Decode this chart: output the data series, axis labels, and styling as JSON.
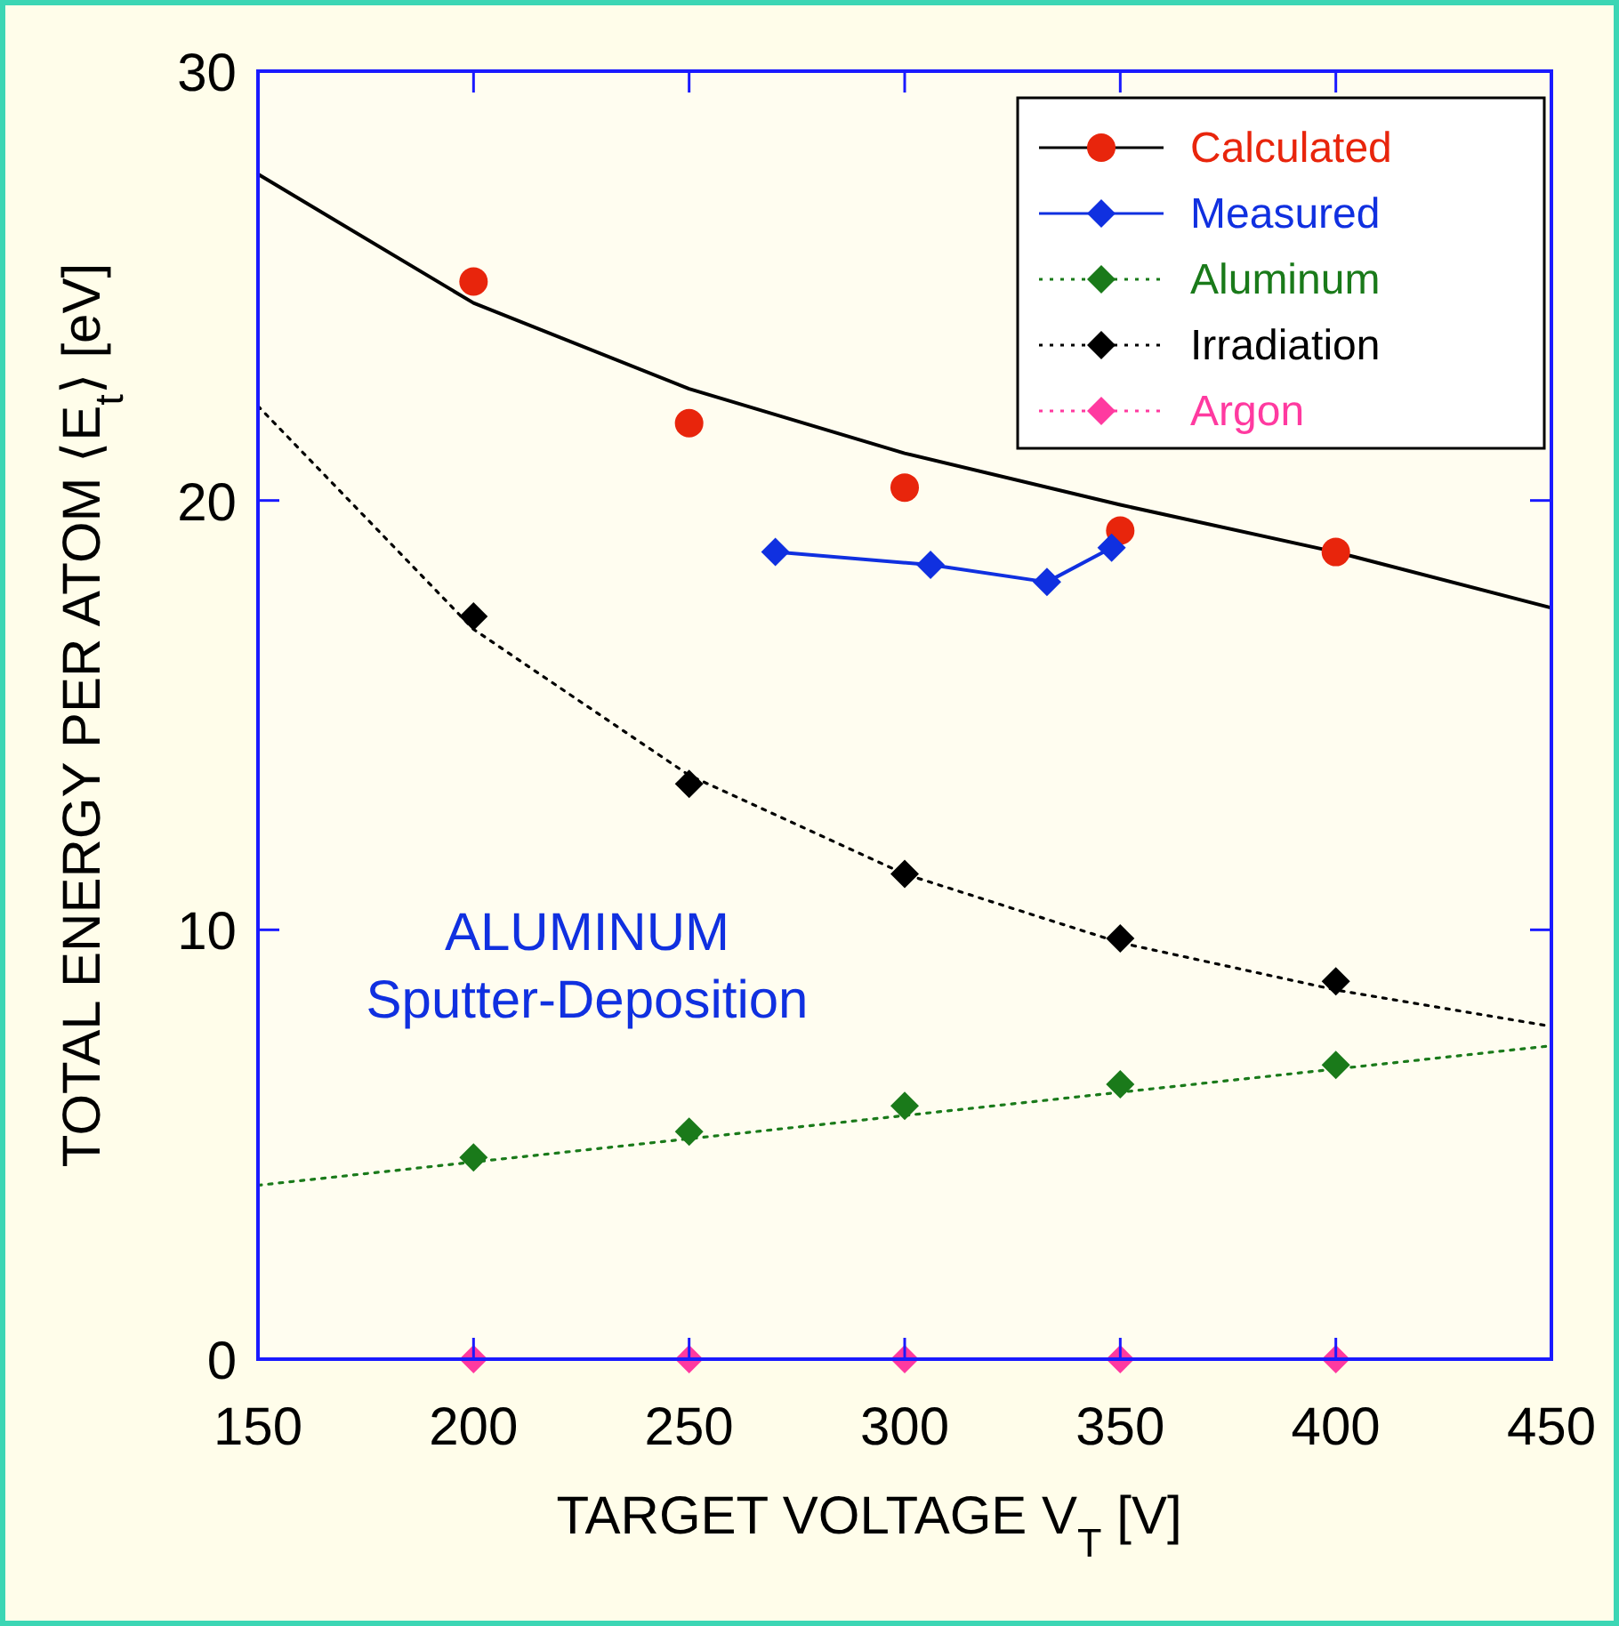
{
  "chart_data": {
    "type": "scatter",
    "xlabel": "TARGET VOLTAGE  V$_{T}$ [V]",
    "ylabel": "TOTAL ENERGY  PER  ATOM  ⟨E$_{t}$⟩ [eV]",
    "xlim": [
      150,
      450
    ],
    "xticks": [
      150,
      200,
      250,
      300,
      350,
      400,
      450
    ],
    "ylim": [
      0,
      30
    ],
    "yticks": [
      0,
      10,
      20,
      30
    ],
    "grid": false,
    "legend": "top right",
    "annotations": [
      "ALUMINUM",
      "Sputter-Deposition"
    ],
    "series": [
      {
        "name": "Calculated",
        "type": "scatter",
        "marker": "circle",
        "color": "#e8250c",
        "x": [
          200,
          250,
          300,
          350,
          400
        ],
        "values": [
          25.1,
          21.8,
          20.3,
          19.3,
          18.8
        ]
      },
      {
        "type": "line",
        "marker": "none",
        "line_style": "solid",
        "color": "#000000",
        "x": [
          150,
          200,
          250,
          300,
          350,
          400,
          450
        ],
        "values": [
          27.6,
          24.6,
          22.6,
          21.1,
          19.9,
          18.8,
          17.5
        ]
      },
      {
        "name": "Measured",
        "type": "line",
        "marker": "diamond",
        "line_style": "solid",
        "color": "#1030e0",
        "x": [
          270,
          306,
          333,
          348
        ],
        "values": [
          18.8,
          18.5,
          18.1,
          18.9
        ]
      },
      {
        "name": "Aluminum",
        "type": "scatter",
        "marker": "diamond",
        "color": "#1a7a1a",
        "x": [
          200,
          250,
          300,
          350,
          400
        ],
        "values": [
          4.7,
          5.3,
          5.9,
          6.4,
          6.85
        ]
      },
      {
        "type": "line",
        "marker": "none",
        "line_style": "dotted",
        "color": "#1a7a1a",
        "x": [
          150,
          450
        ],
        "values": [
          4.05,
          7.3
        ]
      },
      {
        "name": "Irradiation",
        "type": "scatter",
        "marker": "diamond",
        "color": "#000000",
        "x": [
          200,
          250,
          300,
          350,
          400
        ],
        "values": [
          17.3,
          13.4,
          11.3,
          9.8,
          8.8
        ]
      },
      {
        "type": "line",
        "marker": "none",
        "line_style": "dotted",
        "color": "#000000",
        "x": [
          150,
          200,
          250,
          300,
          350,
          400,
          450
        ],
        "values": [
          22.2,
          17.0,
          13.6,
          11.3,
          9.7,
          8.6,
          7.75
        ]
      },
      {
        "name": "Argon",
        "type": "scatter",
        "marker": "diamond",
        "line_style": "dotted",
        "color": "#ff3aa0",
        "x": [
          200,
          250,
          300,
          350,
          400
        ],
        "values": [
          0,
          0,
          0,
          0,
          0
        ]
      }
    ]
  }
}
